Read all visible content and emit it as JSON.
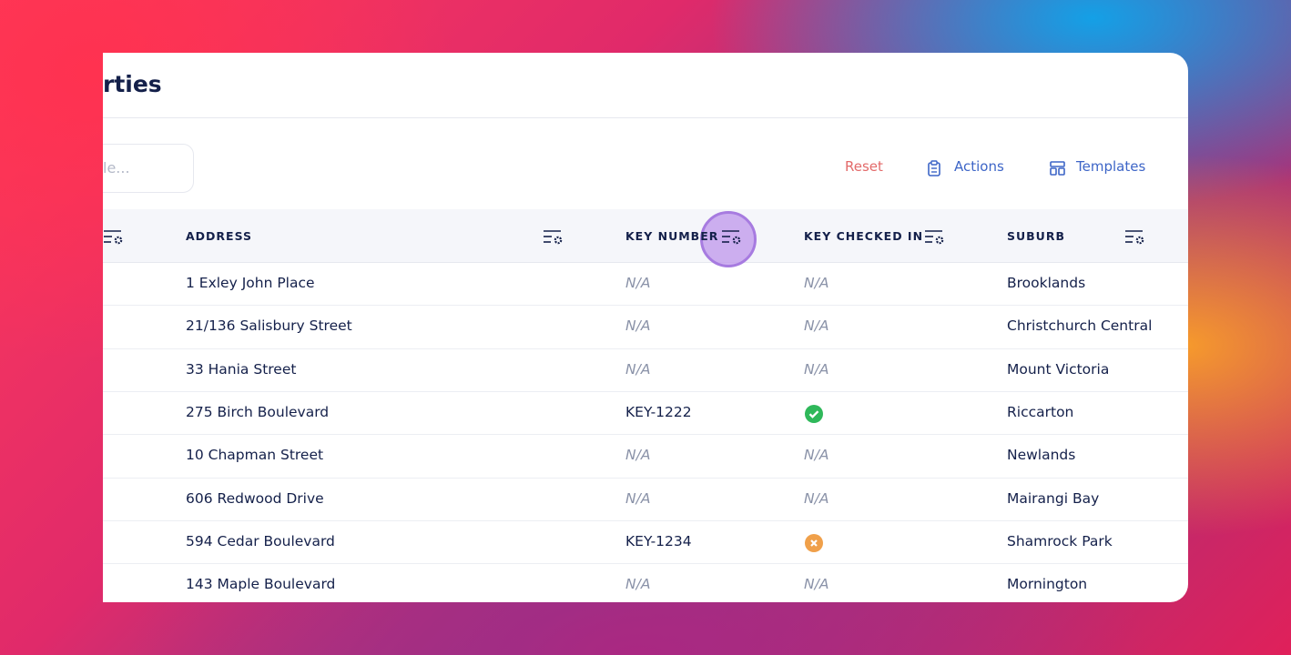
{
  "header": {
    "title": "rties"
  },
  "toolbar": {
    "search_placeholder": "le...",
    "reset": "Reset",
    "actions": "Actions",
    "templates": "Templates"
  },
  "table": {
    "columns": [
      "ADDRESS",
      "KEY NUMBER",
      "KEY CHECKED IN",
      "SUBURB"
    ],
    "rows": [
      [
        "1 Exley John Place",
        "N/A",
        "N/A",
        "Brooklands"
      ],
      [
        "21/136 Salisbury Street",
        "N/A",
        "N/A",
        "Christchurch Central"
      ],
      [
        "33 Hania Street",
        "N/A",
        "N/A",
        "Mount Victoria"
      ],
      [
        "275 Birch Boulevard",
        "KEY-1222",
        true,
        "Riccarton"
      ],
      [
        "10 Chapman Street",
        "N/A",
        "N/A",
        "Newlands"
      ],
      [
        "606 Redwood Drive",
        "N/A",
        "N/A",
        "Mairangi Bay"
      ],
      [
        "594 Cedar Boulevard",
        "KEY-1234",
        false,
        "Shamrock Park"
      ],
      [
        "143 Maple Boulevard",
        "N/A",
        "N/A",
        "Mornington"
      ]
    ]
  }
}
